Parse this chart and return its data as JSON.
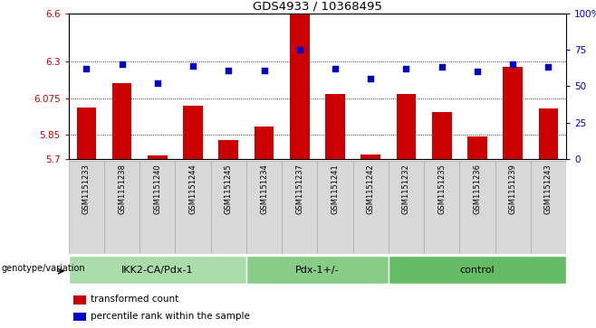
{
  "title": "GDS4933 / 10368495",
  "samples": [
    "GSM1151233",
    "GSM1151238",
    "GSM1151240",
    "GSM1151244",
    "GSM1151245",
    "GSM1151234",
    "GSM1151237",
    "GSM1151241",
    "GSM1151242",
    "GSM1151232",
    "GSM1151235",
    "GSM1151236",
    "GSM1151239",
    "GSM1151243"
  ],
  "bar_values": [
    6.02,
    6.17,
    5.72,
    6.03,
    5.82,
    5.9,
    6.59,
    6.1,
    5.73,
    6.1,
    5.99,
    5.84,
    6.27,
    6.01
  ],
  "percentile_values": [
    62,
    65,
    52,
    64,
    61,
    61,
    75,
    62,
    55,
    62,
    63,
    60,
    65,
    63
  ],
  "ymin": 5.7,
  "ymax": 6.6,
  "yticks": [
    5.7,
    5.85,
    6.075,
    6.3,
    6.6
  ],
  "ytick_labels": [
    "5.7",
    "5.85",
    "6.075",
    "6.3",
    "6.6"
  ],
  "y2min": 0,
  "y2max": 100,
  "y2ticks": [
    0,
    25,
    50,
    75,
    100
  ],
  "y2tick_labels": [
    "0",
    "25",
    "50",
    "75",
    "100%"
  ],
  "bar_color": "#cc0000",
  "dot_color": "#0000cc",
  "groups": [
    {
      "label": "IKK2-CA/Pdx-1",
      "start": 0,
      "end": 5,
      "color": "#aaddaa"
    },
    {
      "label": "Pdx-1+/-",
      "start": 5,
      "end": 9,
      "color": "#88cc88"
    },
    {
      "label": "control",
      "start": 9,
      "end": 14,
      "color": "#66bb66"
    }
  ],
  "xlabel_left": "genotype/variation",
  "legend_items": [
    {
      "color": "#cc0000",
      "label": "transformed count"
    },
    {
      "color": "#0000cc",
      "label": "percentile rank within the sample"
    }
  ],
  "bar_bottom": 5.7,
  "sample_cell_color": "#dddddd",
  "sample_cell_edge": "#aaaaaa"
}
